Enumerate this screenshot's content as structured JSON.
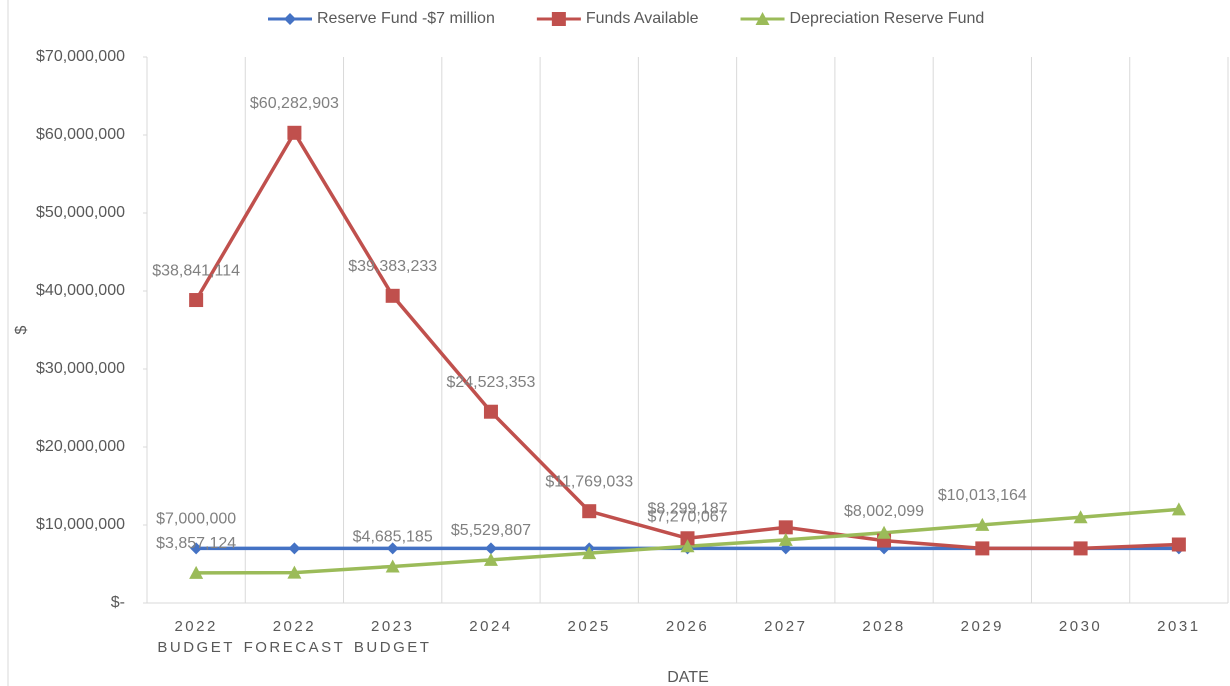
{
  "chart_data": {
    "type": "line",
    "x_label": "DATE",
    "y_label": "$",
    "categories": [
      [
        "2022",
        "BUDGET"
      ],
      [
        "2022",
        "FORECAST"
      ],
      [
        "2023",
        "BUDGET"
      ],
      [
        "2024"
      ],
      [
        "2025"
      ],
      [
        "2026"
      ],
      [
        "2027"
      ],
      [
        "2028"
      ],
      [
        "2029"
      ],
      [
        "2030"
      ],
      [
        "2031"
      ]
    ],
    "ylim": [
      0,
      70000000
    ],
    "yticks": [
      {
        "value": 0,
        "label": "$-"
      },
      {
        "value": 10000000,
        "label": "$10,000,000"
      },
      {
        "value": 20000000,
        "label": "$20,000,000"
      },
      {
        "value": 30000000,
        "label": "$30,000,000"
      },
      {
        "value": 40000000,
        "label": "$40,000,000"
      },
      {
        "value": 50000000,
        "label": "$50,000,000"
      },
      {
        "value": 60000000,
        "label": "$60,000,000"
      },
      {
        "value": 70000000,
        "label": "$70,000,000"
      }
    ],
    "grid": "x",
    "legend": "top",
    "series": [
      {
        "name": "Reserve Fund -$7 million",
        "color": "#4472c4",
        "marker": "diamond",
        "values": [
          7000000,
          7000000,
          7000000,
          7000000,
          7000000,
          7000000,
          7000000,
          7000000,
          7000000,
          7000000,
          7000000
        ],
        "value_labels": [
          "$7,000,000",
          null,
          null,
          null,
          null,
          null,
          null,
          null,
          null,
          null,
          null
        ]
      },
      {
        "name": "Funds Available",
        "color": "#c0504d",
        "marker": "square",
        "values": [
          38841114,
          60282903,
          39383233,
          24523353,
          11769033,
          8299187,
          9700000,
          8002099,
          7000000,
          7000000,
          7500000
        ],
        "value_labels": [
          "$38,841,114",
          "$60,282,903",
          "$39,383,233",
          "$24,523,353",
          "$11,769,033",
          "$8,299,187",
          null,
          "$8,002,099",
          null,
          null,
          null
        ]
      },
      {
        "name": "Depreciation Reserve Fund",
        "color": "#9bbb59",
        "marker": "triangle",
        "values": [
          3857124,
          3900000,
          4685185,
          5529807,
          6400000,
          7270067,
          8100000,
          9000000,
          10013164,
          11000000,
          12000000
        ],
        "value_labels": [
          "$3,857,124",
          null,
          "$4,685,185",
          "$5,529,807",
          null,
          "$7,270,067",
          null,
          null,
          "$10,013,164",
          null,
          null
        ]
      }
    ]
  }
}
